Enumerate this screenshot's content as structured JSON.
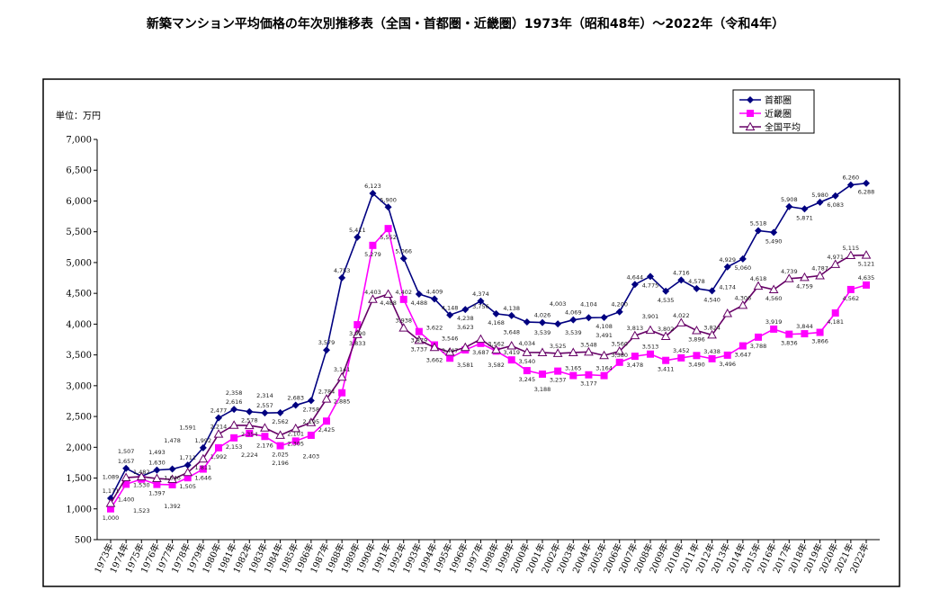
{
  "chart_data": {
    "type": "line",
    "title": "新築マンション平均価格の年次別推移表（全国・首都圏・近畿圏）1973年（昭和48年）～2022年（令和4年）",
    "unit_label": "単位：万円",
    "ylim": [
      500,
      7000
    ],
    "yticks": [
      500,
      1000,
      1500,
      2000,
      2500,
      3000,
      3500,
      4000,
      4500,
      5000,
      5500,
      6000,
      6500,
      7000
    ],
    "ytick_labels": [
      "500",
      "1,000",
      "1,500",
      "2,000",
      "2,500",
      "3,000",
      "3,500",
      "4,000",
      "4,500",
      "5,000",
      "5,500",
      "6,000",
      "6,500",
      "7,000"
    ],
    "grid": false,
    "legend_position": "top-right",
    "categories": [
      "1973年",
      "1974年",
      "1975年",
      "1976年",
      "1977年",
      "1978年",
      "1979年",
      "1980年",
      "1981年",
      "1982年",
      "1983年",
      "1984年",
      "1985年",
      "1986年",
      "1987年",
      "1988年",
      "1989年",
      "1990年",
      "1991年",
      "1992年",
      "1993年",
      "1994年",
      "1995年",
      "1996年",
      "1997年",
      "1998年",
      "1999年",
      "2000年",
      "2001年",
      "2002年",
      "2003年",
      "2004年",
      "2005年",
      "2006年",
      "2007年",
      "2008年",
      "2009年",
      "2010年",
      "2011年",
      "2012年",
      "2013年",
      "2014年",
      "2015年",
      "2016年",
      "2017年",
      "2018年",
      "2019年",
      "2020年",
      "2021年",
      "2022年"
    ],
    "series": [
      {
        "name": "首都圏",
        "color": "#000080",
        "marker": "diamond",
        "values": [
          1171,
          1657,
          1530,
          1630,
          1646,
          1711,
          1992,
          2477,
          2616,
          2578,
          2557,
          2562,
          2683,
          2758,
          3579,
          4753,
          5411,
          6123,
          5900,
          5066,
          4488,
          4409,
          4148,
          4238,
          4374,
          4168,
          4138,
          4034,
          4026,
          4003,
          4069,
          4104,
          4108,
          4200,
          4644,
          4775,
          4535,
          4716,
          4578,
          4540,
          4929,
          5060,
          5518,
          5490,
          5908,
          5871,
          5980,
          6083,
          6260,
          6288
        ]
      },
      {
        "name": "近畿圏",
        "color": "#FF00FF",
        "marker": "square",
        "values": [
          1000,
          1400,
          1482,
          1397,
          1392,
          1505,
          1646,
          1992,
          2153,
          2224,
          2176,
          2025,
          2101,
          2195,
          2425,
          2885,
          3990,
          5279,
          5552,
          4402,
          3879,
          3662,
          3447,
          3581,
          3687,
          3562,
          3419,
          3245,
          3188,
          3237,
          3165,
          3177,
          3164,
          3380,
          3478,
          3513,
          3411,
          3452,
          3490,
          3438,
          3496,
          3647,
          3788,
          3919,
          3836,
          3844,
          3866,
          4181,
          4562,
          4635
        ]
      },
      {
        "name": "全国平均",
        "color": "#660066",
        "marker": "triangle-open",
        "values": [
          1089,
          1507,
          1523,
          1493,
          1478,
          1591,
          1811,
          2214,
          2358,
          2354,
          2314,
          2196,
          2305,
          2403,
          2784,
          3141,
          3833,
          4403,
          4488,
          3938,
          3737,
          3622,
          3546,
          3623,
          3756,
          3582,
          3648,
          3540,
          3539,
          3525,
          3539,
          3548,
          3491,
          3560,
          3813,
          3901,
          3802,
          4022,
          3896,
          3824,
          4174,
          4306,
          4618,
          4560,
          4739,
          4759,
          4787,
          4971,
          5115,
          5121
        ]
      }
    ]
  }
}
